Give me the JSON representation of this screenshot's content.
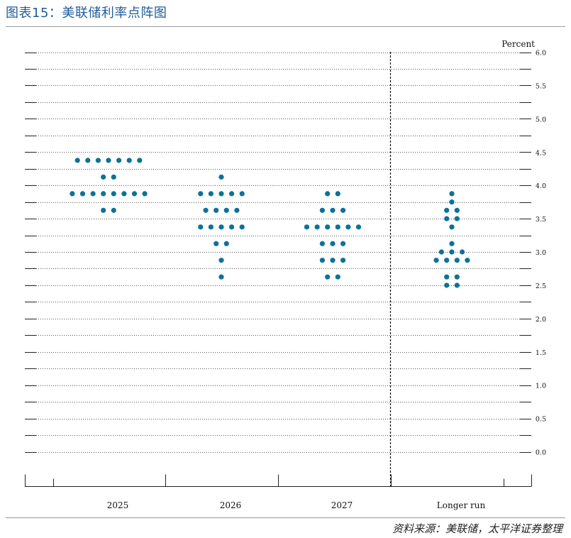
{
  "header": {
    "title": "图表15：美联储利率点阵图"
  },
  "source": {
    "text": "资料来源：美联储，太平洋证券整理"
  },
  "chart_data": {
    "type": "scatter",
    "title": "",
    "ylabel": "Percent",
    "xlabel": "",
    "ylim": [
      0,
      6.0
    ],
    "y_ticks": [
      "0.0",
      "0.5",
      "1.0",
      "1.5",
      "2.0",
      "2.5",
      "3.0",
      "3.5",
      "4.0",
      "4.5",
      "5.0",
      "5.5",
      "6.0"
    ],
    "grid": true,
    "categories": [
      "2025",
      "2026",
      "2027",
      "Longer run"
    ],
    "point_color": "#0e7198",
    "series": [
      {
        "category": "2025",
        "rows": [
          {
            "y": 4.375,
            "count": 7
          },
          {
            "y": 4.125,
            "count": 2
          },
          {
            "y": 3.875,
            "count": 8
          },
          {
            "y": 3.625,
            "count": 2
          }
        ]
      },
      {
        "category": "2026",
        "rows": [
          {
            "y": 4.125,
            "count": 1
          },
          {
            "y": 3.875,
            "count": 5
          },
          {
            "y": 3.625,
            "count": 4
          },
          {
            "y": 3.375,
            "count": 5
          },
          {
            "y": 3.125,
            "count": 2
          },
          {
            "y": 2.875,
            "count": 1
          },
          {
            "y": 2.625,
            "count": 1
          }
        ]
      },
      {
        "category": "2027",
        "rows": [
          {
            "y": 3.875,
            "count": 2
          },
          {
            "y": 3.625,
            "count": 3
          },
          {
            "y": 3.375,
            "count": 6
          },
          {
            "y": 3.125,
            "count": 3
          },
          {
            "y": 2.875,
            "count": 3
          },
          {
            "y": 2.625,
            "count": 2
          }
        ]
      },
      {
        "category": "Longer run",
        "rows": [
          {
            "y": 3.875,
            "count": 1
          },
          {
            "y": 3.75,
            "count": 1
          },
          {
            "y": 3.625,
            "count": 2
          },
          {
            "y": 3.5,
            "count": 2
          },
          {
            "y": 3.375,
            "count": 1
          },
          {
            "y": 3.125,
            "count": 1
          },
          {
            "y": 3.0,
            "count": 3
          },
          {
            "y": 2.875,
            "count": 4
          },
          {
            "y": 2.625,
            "count": 2
          },
          {
            "y": 2.5,
            "count": 2
          }
        ]
      }
    ]
  }
}
